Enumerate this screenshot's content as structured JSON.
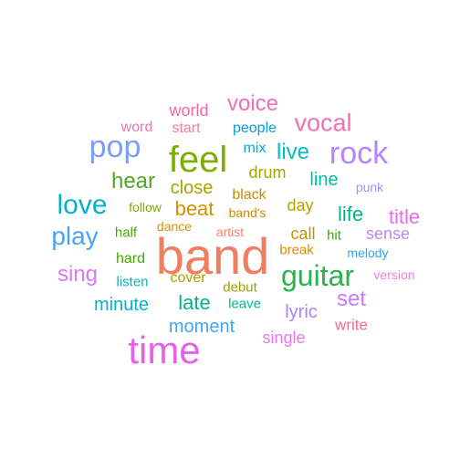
{
  "words": [
    {
      "text": "band",
      "color": "#F07F62",
      "size": 56
    },
    {
      "text": "time",
      "color": "#E762E8",
      "size": 42
    },
    {
      "text": "feel",
      "color": "#7CAE00",
      "size": 40
    },
    {
      "text": "guitar",
      "color": "#2BB24B",
      "size": 32
    },
    {
      "text": "rock",
      "color": "#B585FF",
      "size": 34
    },
    {
      "text": "pop",
      "color": "#7C9EF5",
      "size": 34
    },
    {
      "text": "love",
      "color": "#00B2CC",
      "size": 30
    },
    {
      "text": "play",
      "color": "#4BA3F4",
      "size": 28
    },
    {
      "text": "vocal",
      "color": "#F06FB5",
      "size": 27
    },
    {
      "text": "voice",
      "color": "#F06FB5",
      "size": 24
    },
    {
      "text": "live",
      "color": "#00BFC4",
      "size": 24
    },
    {
      "text": "hear",
      "color": "#4FA820",
      "size": 24
    },
    {
      "text": "sing",
      "color": "#D57AF1",
      "size": 24
    },
    {
      "text": "set",
      "color": "#C77CFF",
      "size": 24
    },
    {
      "text": "late",
      "color": "#00B38B",
      "size": 22
    },
    {
      "text": "beat",
      "color": "#D39200",
      "size": 22
    },
    {
      "text": "life",
      "color": "#00B38B",
      "size": 22
    },
    {
      "text": "title",
      "color": "#E76BF3",
      "size": 22
    },
    {
      "text": "line",
      "color": "#00BFA0",
      "size": 20
    },
    {
      "text": "minute",
      "color": "#00B2D6",
      "size": 20
    },
    {
      "text": "close",
      "color": "#A3A500",
      "size": 20
    },
    {
      "text": "lyric",
      "color": "#A585FF",
      "size": 20
    },
    {
      "text": "moment",
      "color": "#3DA7F7",
      "size": 20
    },
    {
      "text": "world",
      "color": "#F06AA6",
      "size": 18
    },
    {
      "text": "drum",
      "color": "#A3A500",
      "size": 18
    },
    {
      "text": "day",
      "color": "#BDA000",
      "size": 18
    },
    {
      "text": "call",
      "color": "#C89000",
      "size": 18
    },
    {
      "text": "single",
      "color": "#E57AEA",
      "size": 18
    },
    {
      "text": "sense",
      "color": "#B68AF3",
      "size": 18
    },
    {
      "text": "write",
      "color": "#F36C8C",
      "size": 17
    },
    {
      "text": "people",
      "color": "#009FE0",
      "size": 16
    },
    {
      "text": "start",
      "color": "#F37BA5",
      "size": 16
    },
    {
      "text": "word",
      "color": "#F374A8",
      "size": 16
    },
    {
      "text": "mix",
      "color": "#00B1C4",
      "size": 16
    },
    {
      "text": "black",
      "color": "#C68B00",
      "size": 16
    },
    {
      "text": "cover",
      "color": "#B2A000",
      "size": 16
    },
    {
      "text": "hard",
      "color": "#41AB00",
      "size": 16
    },
    {
      "text": "half",
      "color": "#47AA00",
      "size": 15
    },
    {
      "text": "listen",
      "color": "#00B7C0",
      "size": 15
    },
    {
      "text": "debut",
      "color": "#9CA300",
      "size": 15
    },
    {
      "text": "leave",
      "color": "#00B895",
      "size": 15
    },
    {
      "text": "follow",
      "color": "#7CAB00",
      "size": 14
    },
    {
      "text": "dance",
      "color": "#DD9000",
      "size": 14
    },
    {
      "text": "artist",
      "color": "#F48070",
      "size": 14
    },
    {
      "text": "band's",
      "color": "#D28A00",
      "size": 14
    },
    {
      "text": "hit",
      "color": "#43A800",
      "size": 15
    },
    {
      "text": "break",
      "color": "#E08B00",
      "size": 15
    },
    {
      "text": "melody",
      "color": "#2AA8EF",
      "size": 14
    },
    {
      "text": "version",
      "color": "#F57DE5",
      "size": 14
    },
    {
      "text": "punk",
      "color": "#A58CFF",
      "size": 14
    }
  ]
}
